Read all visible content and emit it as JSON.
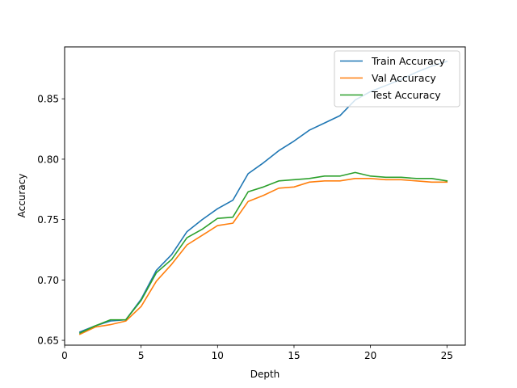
{
  "chart_data": {
    "type": "line",
    "title": "",
    "xlabel": "Depth",
    "ylabel": "Accuracy",
    "xlim": [
      0,
      26.2
    ],
    "ylim": [
      0.646,
      0.893
    ],
    "xticks": [
      0,
      5,
      10,
      15,
      20,
      25
    ],
    "yticks": [
      0.65,
      0.7,
      0.75,
      0.8,
      0.85
    ],
    "grid": false,
    "legend_position": "top-right",
    "x": [
      1,
      2,
      3,
      4,
      5,
      6,
      7,
      8,
      9,
      10,
      11,
      12,
      13,
      14,
      15,
      16,
      17,
      18,
      19,
      20,
      21,
      22,
      23,
      24,
      25
    ],
    "series": [
      {
        "name": "Train Accuracy",
        "color": "#1f77b4",
        "values": [
          0.657,
          0.662,
          0.666,
          0.667,
          0.684,
          0.708,
          0.721,
          0.74,
          0.75,
          0.759,
          0.766,
          0.788,
          0.797,
          0.807,
          0.815,
          0.824,
          0.83,
          0.836,
          0.849,
          0.856,
          0.861,
          0.866,
          0.872,
          0.877,
          0.881
        ]
      },
      {
        "name": "Val Accuracy",
        "color": "#ff7f0e",
        "values": [
          0.655,
          0.661,
          0.663,
          0.666,
          0.678,
          0.699,
          0.713,
          0.729,
          0.737,
          0.745,
          0.747,
          0.765,
          0.77,
          0.776,
          0.777,
          0.781,
          0.782,
          0.782,
          0.784,
          0.784,
          0.783,
          0.783,
          0.782,
          0.781,
          0.781
        ]
      },
      {
        "name": "Test Accuracy",
        "color": "#2ca02c",
        "values": [
          0.656,
          0.662,
          0.667,
          0.667,
          0.683,
          0.706,
          0.717,
          0.735,
          0.742,
          0.751,
          0.752,
          0.773,
          0.777,
          0.782,
          0.783,
          0.784,
          0.786,
          0.786,
          0.789,
          0.786,
          0.785,
          0.785,
          0.784,
          0.784,
          0.782
        ]
      }
    ]
  }
}
